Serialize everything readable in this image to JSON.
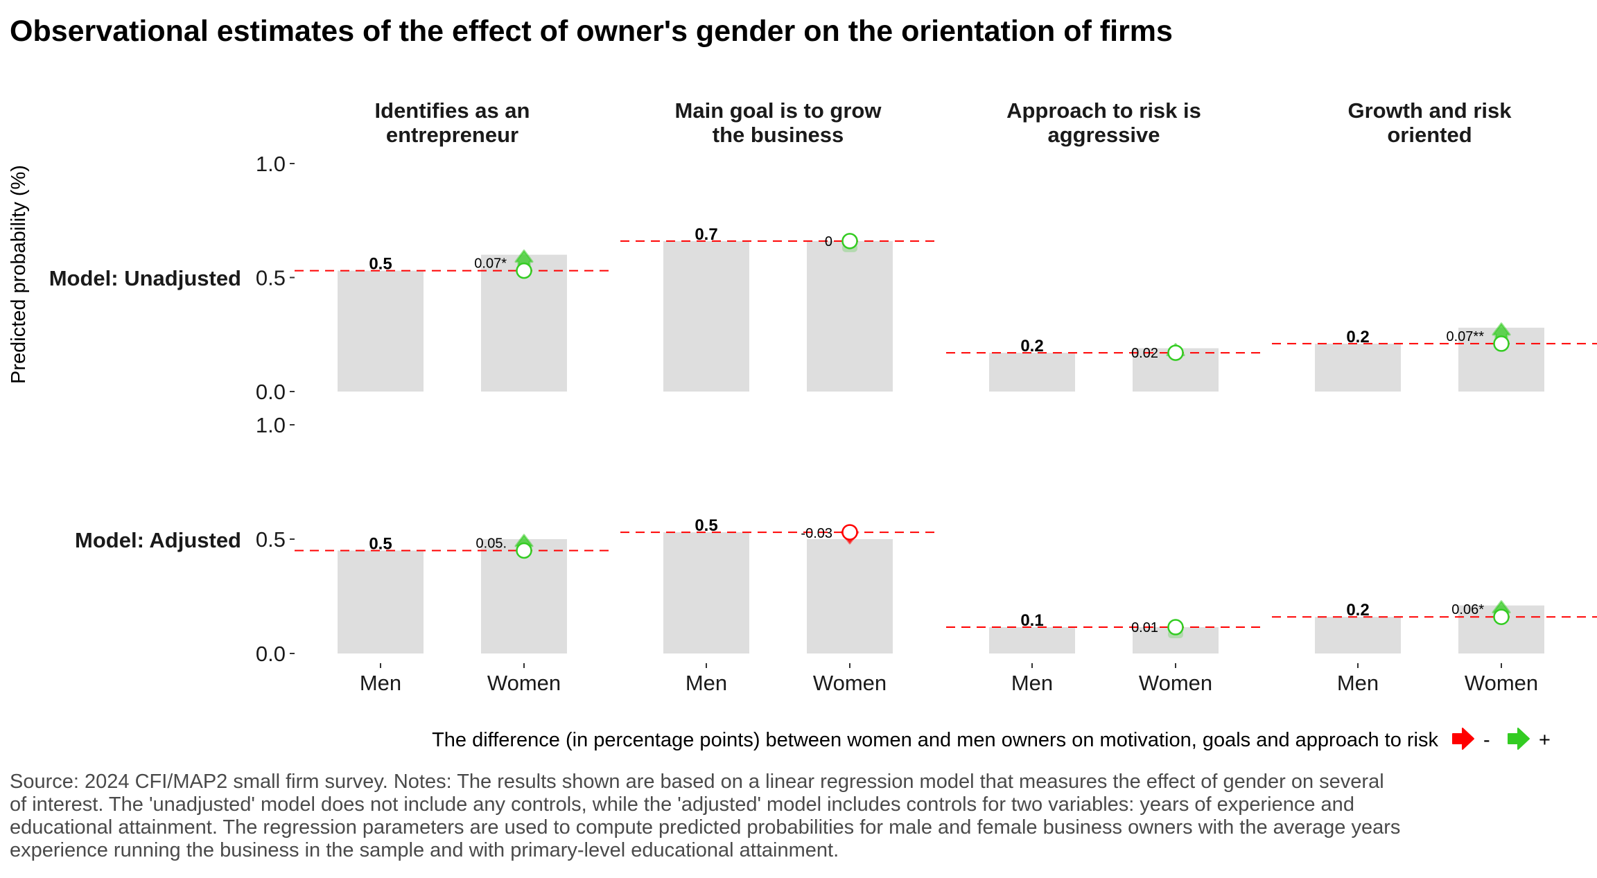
{
  "chart_data": {
    "type": "bar",
    "title": "Observational estimates of the effect of owner's gender on the orientation of firms",
    "ylabel": "Predicted probability (%)",
    "xlabel": "",
    "ylim": [
      0,
      1
    ],
    "yticks": [
      "0.0",
      "0.5",
      "1.0"
    ],
    "categories": [
      "Men",
      "Women"
    ],
    "facets": [
      "Identifies as an|entrepreneur",
      "Main goal is to grow|the business",
      "Approach to risk is|aggressive",
      "Growth and risk|oriented"
    ],
    "rows": [
      {
        "label": "Model: Unadjusted",
        "panels": [
          {
            "men": 0.53,
            "women": 0.6,
            "men_label": "0.5",
            "diff": 0.07,
            "diff_label": "0.07*",
            "direction": "+"
          },
          {
            "men": 0.66,
            "women": 0.66,
            "men_label": "0.7",
            "diff": 0.0,
            "diff_label": "0",
            "direction": "+"
          },
          {
            "men": 0.17,
            "women": 0.19,
            "men_label": "0.2",
            "diff": 0.02,
            "diff_label": "0.02",
            "direction": "+"
          },
          {
            "men": 0.21,
            "women": 0.28,
            "men_label": "0.2",
            "diff": 0.07,
            "diff_label": "0.07**",
            "direction": "+"
          }
        ]
      },
      {
        "label": "Model: Adjusted",
        "panels": [
          {
            "men": 0.45,
            "women": 0.5,
            "men_label": "0.5",
            "diff": 0.05,
            "diff_label": "0.05.",
            "direction": "+"
          },
          {
            "men": 0.53,
            "women": 0.5,
            "men_label": "0.5",
            "diff": -0.03,
            "diff_label": "-0.03",
            "direction": "-"
          },
          {
            "men": 0.115,
            "women": 0.115,
            "men_label": "0.1",
            "diff": 0.01,
            "diff_label": "0.01",
            "direction": "+"
          },
          {
            "men": 0.16,
            "women": 0.21,
            "men_label": "0.2",
            "diff": 0.06,
            "diff_label": "0.06*",
            "direction": "+"
          }
        ]
      }
    ],
    "legend": {
      "title": "The difference (in percentage points) between women and men owners on motivation, goals and approach to risk",
      "items": [
        {
          "label": "-",
          "color": "#ff0000",
          "icon": "red-arrow-icon"
        },
        {
          "label": "+",
          "color": "#33cc22",
          "icon": "green-arrow-icon"
        }
      ],
      "placement": "bottom"
    },
    "reference_line": "dashed red line at men's predicted probability",
    "colors": {
      "bar": "#dedede",
      "reference": "#ff0000",
      "positive": "#33cc22",
      "negative": "#ff0000"
    }
  },
  "caption": [
    "Source: 2024 CFI/MAP2 small firm survey. Notes: The results shown are based on a linear regression model that measures the effect of gender on several",
    "of interest. The 'unadjusted' model does not include any controls, while the 'adjusted' model includes controls for two variables: years of experience and",
    "educational attainment. The regression parameters are used to compute predicted probabilities for male and female business owners with the average years",
    "experience running the business in the sample and with primary-level educational attainment."
  ]
}
